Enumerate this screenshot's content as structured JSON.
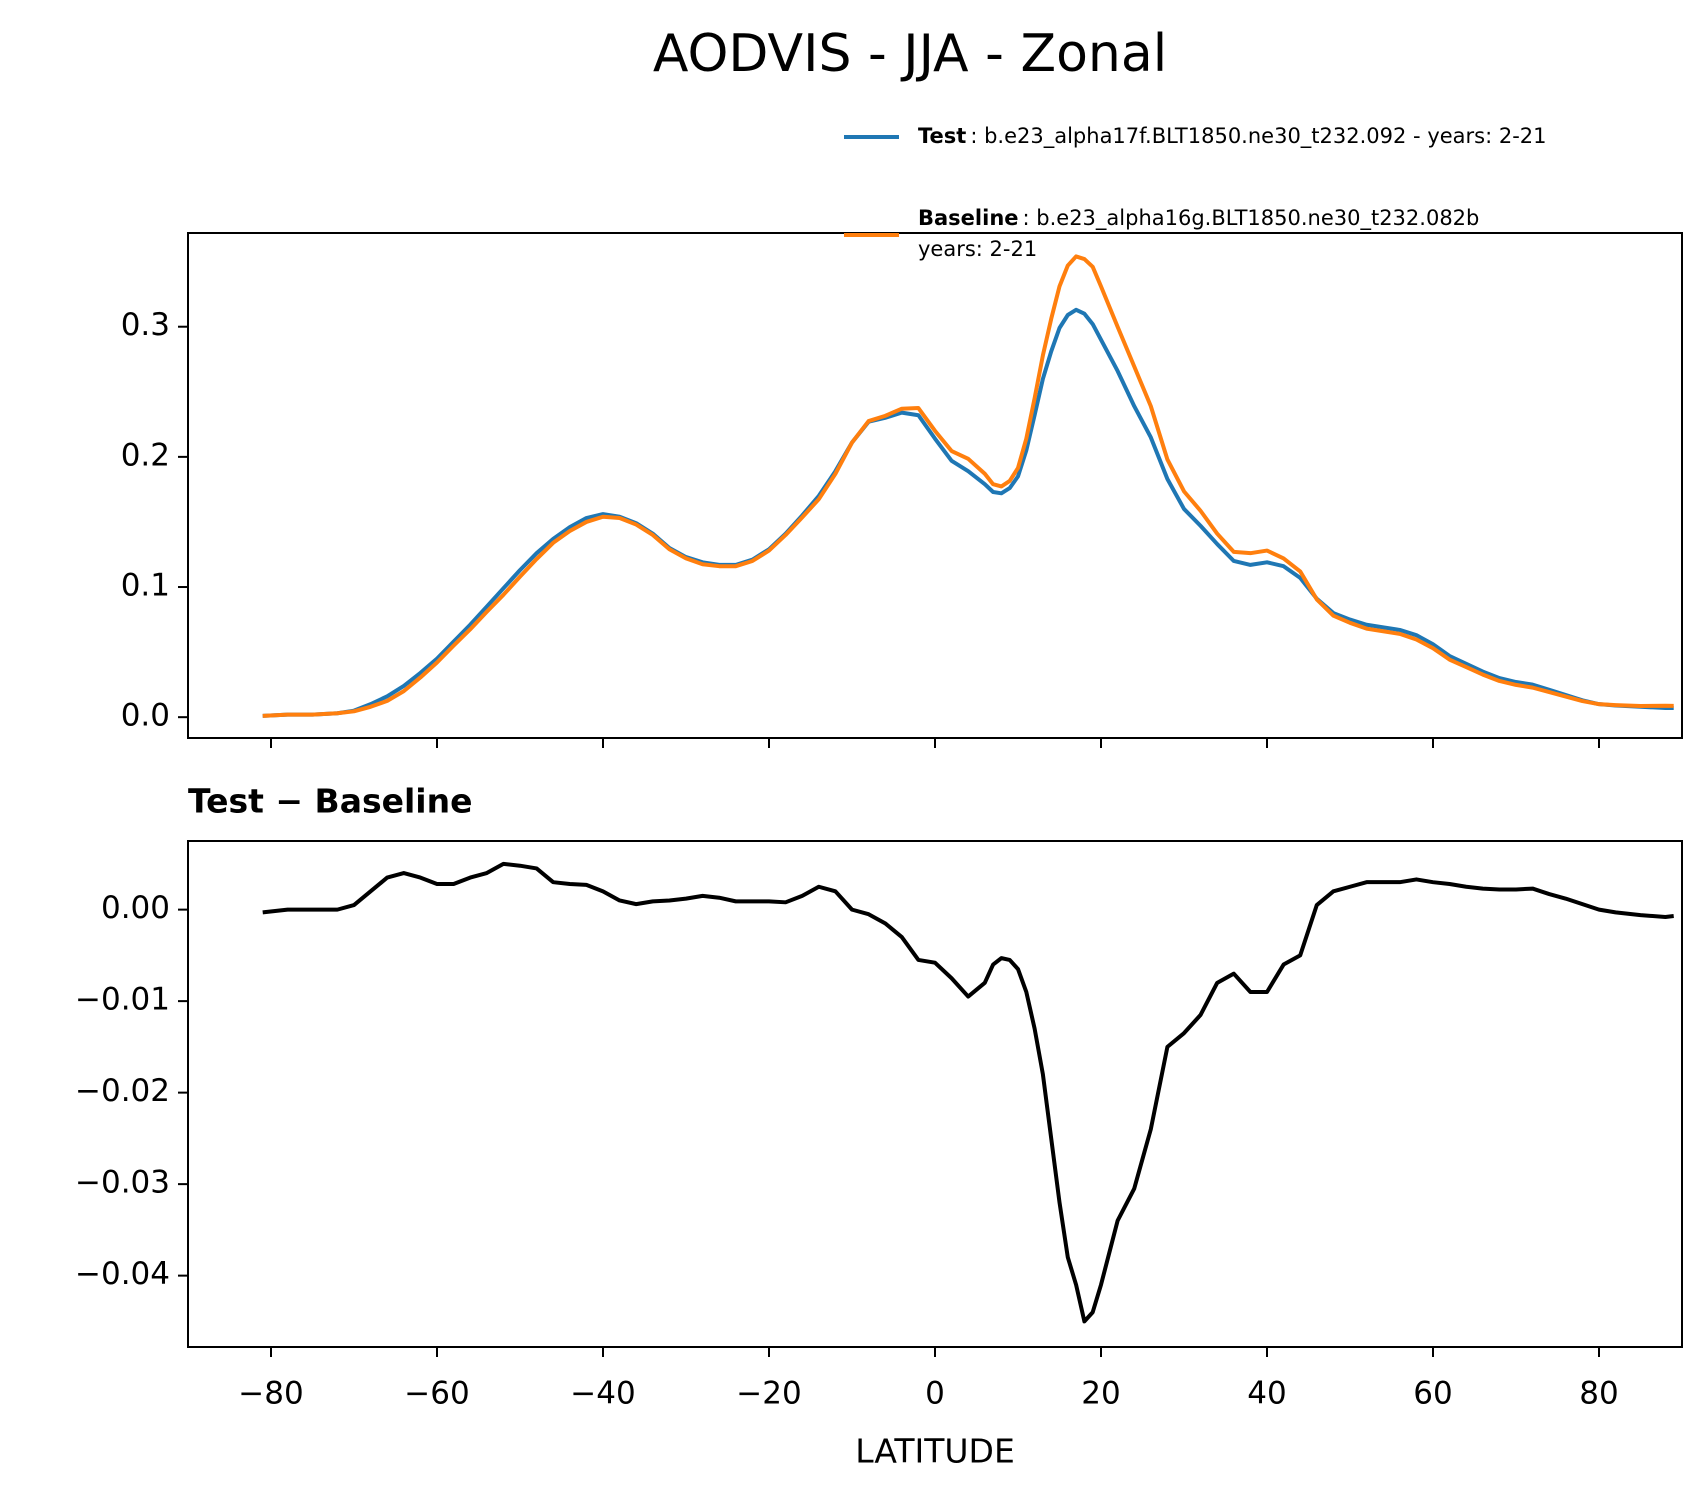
{
  "chart_data": [
    {
      "type": "line",
      "title": "AODVIS - JJA - Zonal",
      "x": [
        -81,
        -78,
        -75,
        -72,
        -70,
        -68,
        -66,
        -64,
        -62,
        -60,
        -58,
        -56,
        -54,
        -52,
        -50,
        -48,
        -46,
        -44,
        -42,
        -40,
        -38,
        -36,
        -34,
        -32,
        -30,
        -28,
        -26,
        -24,
        -22,
        -20,
        -18,
        -16,
        -14,
        -12,
        -10,
        -8,
        -6,
        -4,
        -2,
        0,
        2,
        4,
        6,
        7,
        8,
        9,
        10,
        11,
        12,
        13,
        14,
        15,
        16,
        17,
        18,
        19,
        20,
        22,
        24,
        26,
        28,
        30,
        32,
        34,
        36,
        38,
        40,
        42,
        44,
        46,
        48,
        50,
        52,
        54,
        56,
        58,
        60,
        62,
        64,
        66,
        68,
        70,
        72,
        74,
        76,
        78,
        80,
        82,
        85,
        88,
        89
      ],
      "series": [
        {
          "name": "Test",
          "description": [
            ": b.e23_alpha17f.BLT1850.ne30_t232.092 - years: 2-21"
          ],
          "color": "#1f77b4",
          "values": [
            0.001,
            0.002,
            0.002,
            0.003,
            0.005,
            0.01,
            0.016,
            0.024,
            0.034,
            0.045,
            0.058,
            0.071,
            0.085,
            0.099,
            0.113,
            0.126,
            0.137,
            0.146,
            0.153,
            0.156,
            0.154,
            0.149,
            0.141,
            0.13,
            0.123,
            0.119,
            0.117,
            0.117,
            0.121,
            0.129,
            0.141,
            0.155,
            0.17,
            0.189,
            0.211,
            0.227,
            0.23,
            0.234,
            0.232,
            0.214,
            0.197,
            0.189,
            0.179,
            0.173,
            0.172,
            0.176,
            0.185,
            0.205,
            0.232,
            0.26,
            0.281,
            0.299,
            0.309,
            0.313,
            0.31,
            0.302,
            0.29,
            0.266,
            0.239,
            0.215,
            0.183,
            0.16,
            0.147,
            0.133,
            0.12,
            0.117,
            0.119,
            0.116,
            0.107,
            0.091,
            0.08,
            0.075,
            0.071,
            0.069,
            0.067,
            0.063,
            0.056,
            0.047,
            0.041,
            0.035,
            0.03,
            0.027,
            0.025,
            0.021,
            0.017,
            0.013,
            0.01,
            0.009,
            0.008,
            0.007,
            0.007
          ]
        },
        {
          "name": "Baseline",
          "description": [
            ": b.e23_alpha16g.BLT1850.ne30_t232.082b",
            "years: 2-21"
          ],
          "color": "#ff7f0e",
          "values": [
            0.001,
            0.002,
            0.002,
            0.003,
            0.0045,
            0.008,
            0.0125,
            0.02,
            0.0305,
            0.042,
            0.055,
            0.0675,
            0.081,
            0.094,
            0.108,
            0.1215,
            0.134,
            0.143,
            0.15,
            0.154,
            0.153,
            0.148,
            0.14,
            0.129,
            0.122,
            0.1175,
            0.116,
            0.116,
            0.12,
            0.128,
            0.14,
            0.1535,
            0.1675,
            0.187,
            0.211,
            0.2275,
            0.2315,
            0.237,
            0.2375,
            0.22,
            0.2045,
            0.1985,
            0.187,
            0.179,
            0.1773,
            0.1815,
            0.1915,
            0.214,
            0.245,
            0.278,
            0.306,
            0.331,
            0.347,
            0.354,
            0.352,
            0.346,
            0.331,
            0.3,
            0.2695,
            0.239,
            0.198,
            0.1735,
            0.1585,
            0.141,
            0.127,
            0.126,
            0.128,
            0.122,
            0.112,
            0.0905,
            0.078,
            0.0725,
            0.068,
            0.066,
            0.064,
            0.0597,
            0.053,
            0.0442,
            0.0385,
            0.0327,
            0.0278,
            0.0248,
            0.0227,
            0.0193,
            0.0158,
            0.0124,
            0.01,
            0.0093,
            0.0086,
            0.0088,
            0.0087
          ]
        }
      ],
      "xlim": [
        -90,
        90
      ],
      "xticks": [
        -80,
        -60,
        -40,
        -20,
        0,
        20,
        40,
        60,
        80
      ],
      "ylim": [
        -0.016,
        0.372
      ],
      "yticks": [
        {
          "value": 0,
          "label": "0.0"
        },
        0.1,
        0.2,
        0.3
      ]
    },
    {
      "type": "line",
      "title": "Test − Baseline",
      "xlabel": "LATITUDE",
      "x": [
        -81,
        -78,
        -75,
        -72,
        -70,
        -68,
        -66,
        -64,
        -62,
        -60,
        -58,
        -56,
        -54,
        -52,
        -50,
        -48,
        -46,
        -44,
        -42,
        -40,
        -38,
        -36,
        -34,
        -32,
        -30,
        -28,
        -26,
        -24,
        -22,
        -20,
        -18,
        -16,
        -14,
        -12,
        -10,
        -8,
        -6,
        -4,
        -2,
        0,
        2,
        4,
        6,
        7,
        8,
        9,
        10,
        11,
        12,
        13,
        14,
        15,
        16,
        17,
        18,
        19,
        20,
        22,
        24,
        26,
        28,
        30,
        32,
        34,
        36,
        38,
        40,
        42,
        44,
        46,
        48,
        50,
        52,
        54,
        56,
        58,
        60,
        62,
        64,
        66,
        68,
        70,
        72,
        74,
        76,
        78,
        80,
        82,
        85,
        88,
        89
      ],
      "series": [
        {
          "color": "#000000",
          "values": [
            -0.0003,
            0,
            0,
            0,
            0.0005,
            0.002,
            0.0035,
            0.004,
            0.0035,
            0.0028,
            0.0028,
            0.0035,
            0.004,
            0.005,
            0.0048,
            0.0045,
            0.003,
            0.0028,
            0.0027,
            0.002,
            0.001,
            0.0006,
            0.0009,
            0.001,
            0.0012,
            0.0015,
            0.0013,
            0.0009,
            0.0009,
            0.0009,
            0.0008,
            0.0015,
            0.0025,
            0.002,
            0,
            -0.0005,
            -0.0015,
            -0.003,
            -0.0055,
            -0.0058,
            -0.0075,
            -0.0095,
            -0.008,
            -0.006,
            -0.0053,
            -0.0055,
            -0.0065,
            -0.009,
            -0.013,
            -0.018,
            -0.025,
            -0.032,
            -0.038,
            -0.041,
            -0.045,
            -0.044,
            -0.041,
            -0.034,
            -0.0305,
            -0.024,
            -0.015,
            -0.0135,
            -0.0115,
            -0.008,
            -0.007,
            -0.009,
            -0.009,
            -0.006,
            -0.005,
            0.0005,
            0.002,
            0.0025,
            0.003,
            0.003,
            0.003,
            0.0033,
            0.003,
            0.0028,
            0.0025,
            0.0023,
            0.0022,
            0.0022,
            0.0023,
            0.0017,
            0.0012,
            0.0006,
            0,
            -0.0003,
            -0.0006,
            -0.0008,
            -0.0007
          ]
        }
      ],
      "xlim": [
        -90,
        90
      ],
      "xticks": [
        {
          "value": -80,
          "label": "−80"
        },
        {
          "value": -60,
          "label": "−60"
        },
        {
          "value": -40,
          "label": "−40"
        },
        {
          "value": -20,
          "label": "−20"
        },
        0,
        20,
        40,
        60,
        80
      ],
      "ylim": [
        -0.0478,
        0.0075
      ],
      "yticks": [
        {
          "value": -0.04,
          "label": "−0.04"
        },
        {
          "value": -0.03,
          "label": "−0.03"
        },
        {
          "value": -0.02,
          "label": "−0.02"
        },
        {
          "value": -0.01,
          "label": "−0.01"
        },
        {
          "value": 0,
          "label": "0.00"
        }
      ]
    }
  ]
}
